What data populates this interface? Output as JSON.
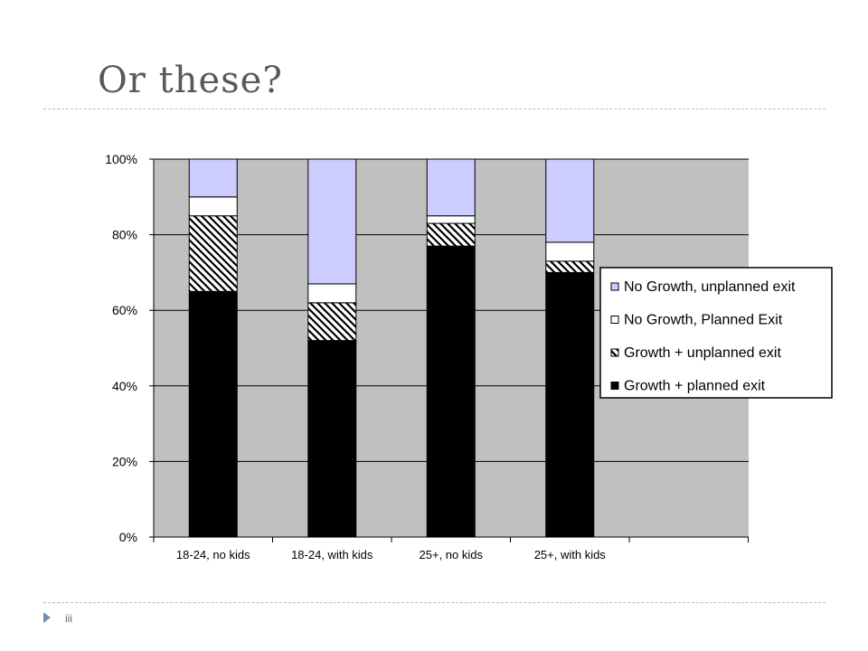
{
  "slide": {
    "title": "Or these?",
    "number": "iii"
  },
  "chart_data": {
    "type": "bar",
    "stacked": true,
    "categories": [
      "18-24, no kids",
      "18-24, with kids",
      "25+, no kids",
      "25+, with kids"
    ],
    "series": [
      {
        "name": "Growth + planned exit",
        "values": [
          65,
          52,
          77,
          70
        ],
        "fill": "#000000",
        "pattern": "solid"
      },
      {
        "name": "Growth + unplanned exit",
        "values": [
          20,
          10,
          6,
          3
        ],
        "fill": "#ffffff",
        "pattern": "diagonal-hatch"
      },
      {
        "name": "No Growth, Planned Exit",
        "values": [
          5,
          5,
          2,
          5
        ],
        "fill": "#ffffff",
        "pattern": "solid"
      },
      {
        "name": "No Growth, unplanned exit",
        "values": [
          10,
          33,
          15,
          22
        ],
        "fill": "#ccccff",
        "pattern": "solid"
      }
    ],
    "ylim": [
      0,
      100
    ],
    "yticks": [
      "0%",
      "20%",
      "40%",
      "60%",
      "80%",
      "100%"
    ],
    "grid": true,
    "plot_background": "#c0c0c0",
    "legend_position": "right",
    "legend_order": [
      "No Growth, unplanned exit",
      "No Growth, Planned Exit",
      "Growth + unplanned exit",
      "Growth + planned exit"
    ]
  }
}
